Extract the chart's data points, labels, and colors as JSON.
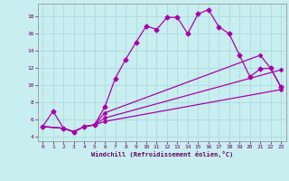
{
  "xlabel": "Windchill (Refroidissement éolien,°C)",
  "background_color": "#c8eef0",
  "grid_color": "#b0dde0",
  "line_color": "#aa00aa",
  "xlim": [
    -0.5,
    23.5
  ],
  "ylim": [
    3.5,
    19.5
  ],
  "yticks": [
    4,
    6,
    8,
    10,
    12,
    14,
    16,
    18
  ],
  "xticks": [
    0,
    1,
    2,
    3,
    4,
    5,
    6,
    7,
    8,
    9,
    10,
    11,
    12,
    13,
    14,
    15,
    16,
    17,
    18,
    19,
    20,
    21,
    22,
    23
  ],
  "lines": [
    {
      "x": [
        0,
        1,
        2,
        3,
        4,
        5,
        6,
        7,
        8,
        9,
        10,
        11,
        12,
        13,
        14,
        15,
        16,
        17,
        18,
        19,
        20,
        21,
        22,
        23
      ],
      "y": [
        5.2,
        7.0,
        5.0,
        4.6,
        5.2,
        5.4,
        7.5,
        10.8,
        13.0,
        15.0,
        16.9,
        16.5,
        17.9,
        17.9,
        16.0,
        18.3,
        18.8,
        16.8,
        16.0,
        13.5,
        11.0,
        11.9,
        12.0,
        9.8
      ]
    },
    {
      "x": [
        0,
        2,
        3,
        4,
        5,
        6,
        23
      ],
      "y": [
        5.2,
        5.0,
        4.6,
        5.2,
        5.4,
        5.8,
        9.5
      ]
    },
    {
      "x": [
        0,
        2,
        3,
        4,
        5,
        6,
        23
      ],
      "y": [
        5.2,
        5.0,
        4.6,
        5.2,
        5.4,
        6.2,
        11.8
      ]
    },
    {
      "x": [
        0,
        2,
        3,
        4,
        5,
        6,
        21,
        22,
        23
      ],
      "y": [
        5.2,
        5.0,
        4.6,
        5.2,
        5.4,
        6.8,
        13.5,
        12.0,
        9.8
      ]
    }
  ]
}
